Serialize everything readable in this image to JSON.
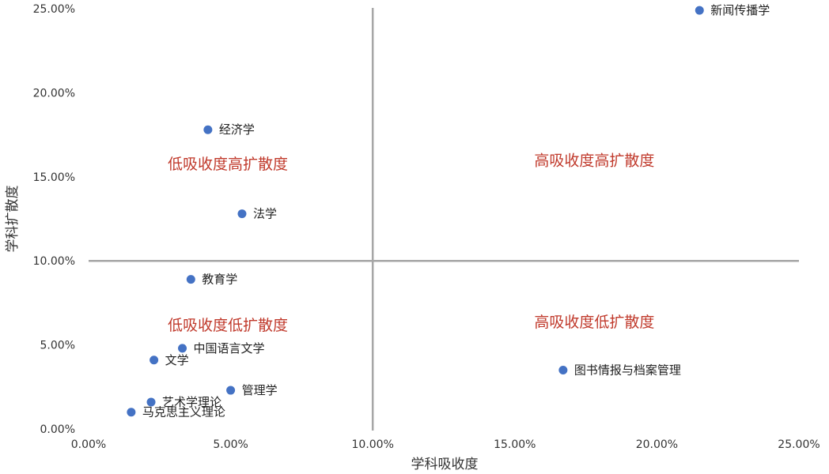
{
  "chart_data": {
    "type": "scatter",
    "xlabel": "学科吸收度",
    "ylabel": "学科扩散度",
    "xlim": [
      0,
      0.25
    ],
    "ylim": [
      0,
      0.25
    ],
    "x_ticks": [
      "0.00%",
      "5.00%",
      "10.00%",
      "15.00%",
      "20.00%",
      "25.00%"
    ],
    "y_ticks": [
      "0.00%",
      "5.00%",
      "10.00%",
      "15.00%",
      "20.00%",
      "25.00%"
    ],
    "reference_lines": {
      "x": 0.1,
      "y": 0.1
    },
    "point_color": "#4472c4",
    "quadrant_color": "#c0392b",
    "points": [
      {
        "label": "新闻传播学",
        "x": 0.215,
        "y": 0.249
      },
      {
        "label": "经济学",
        "x": 0.042,
        "y": 0.178
      },
      {
        "label": "法学",
        "x": 0.054,
        "y": 0.128
      },
      {
        "label": "教育学",
        "x": 0.036,
        "y": 0.089
      },
      {
        "label": "中国语言文学",
        "x": 0.033,
        "y": 0.048
      },
      {
        "label": "文学",
        "x": 0.023,
        "y": 0.041
      },
      {
        "label": "管理学",
        "x": 0.05,
        "y": 0.023
      },
      {
        "label": "艺术学理论",
        "x": 0.022,
        "y": 0.016
      },
      {
        "label": "马克思主义理论",
        "x": 0.015,
        "y": 0.01
      },
      {
        "label": "图书情报与档案管理",
        "x": 0.167,
        "y": 0.035
      }
    ],
    "quadrant_labels": [
      {
        "text": "低吸收度高扩散度",
        "x": 0.049,
        "y": 0.158
      },
      {
        "text": "高吸收度高扩散度",
        "x": 0.178,
        "y": 0.16
      },
      {
        "text": "低吸收度低扩散度",
        "x": 0.049,
        "y": 0.062
      },
      {
        "text": "高吸收度低扩散度",
        "x": 0.178,
        "y": 0.064
      }
    ]
  }
}
